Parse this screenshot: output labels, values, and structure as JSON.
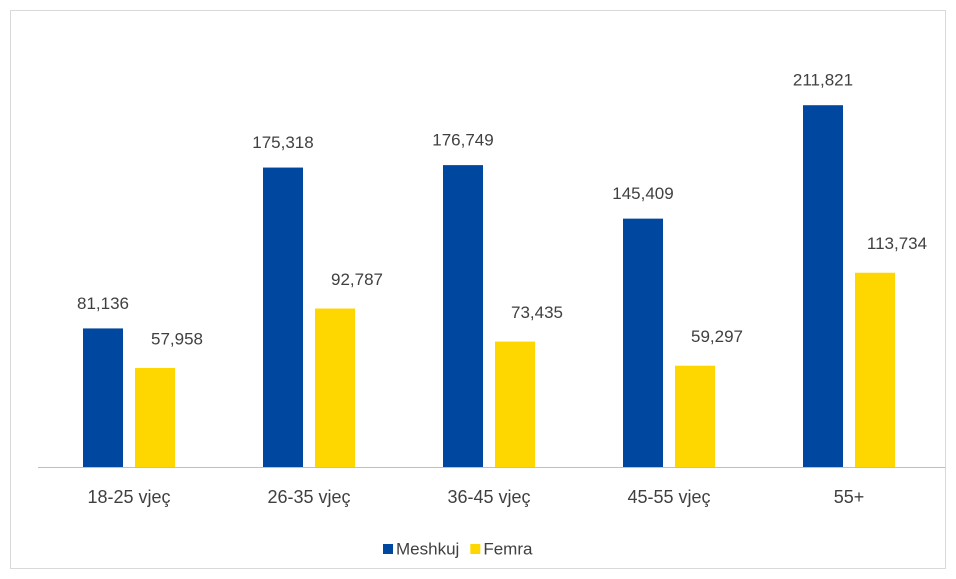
{
  "chart_data": {
    "type": "bar",
    "categories": [
      "18-25 vjeç",
      "26-35 vjeç",
      "36-45 vjeç",
      "45-55 vjeç",
      "55+"
    ],
    "series": [
      {
        "name": "Meshkuj",
        "color": "#0047a0",
        "values": [
          81136,
          175318,
          176749,
          145409,
          211821
        ],
        "value_labels": [
          "81,136",
          "175,318",
          "176,749",
          "145,409",
          "211,821"
        ]
      },
      {
        "name": "Femra",
        "color": "#ffd700",
        "values": [
          57958,
          92787,
          73435,
          59297,
          113734
        ],
        "value_labels": [
          "57,958",
          "92,787",
          "73,435",
          "59,297",
          "113,734"
        ]
      }
    ],
    "ylim": [
      0,
      250000
    ],
    "legend": "bottom"
  }
}
